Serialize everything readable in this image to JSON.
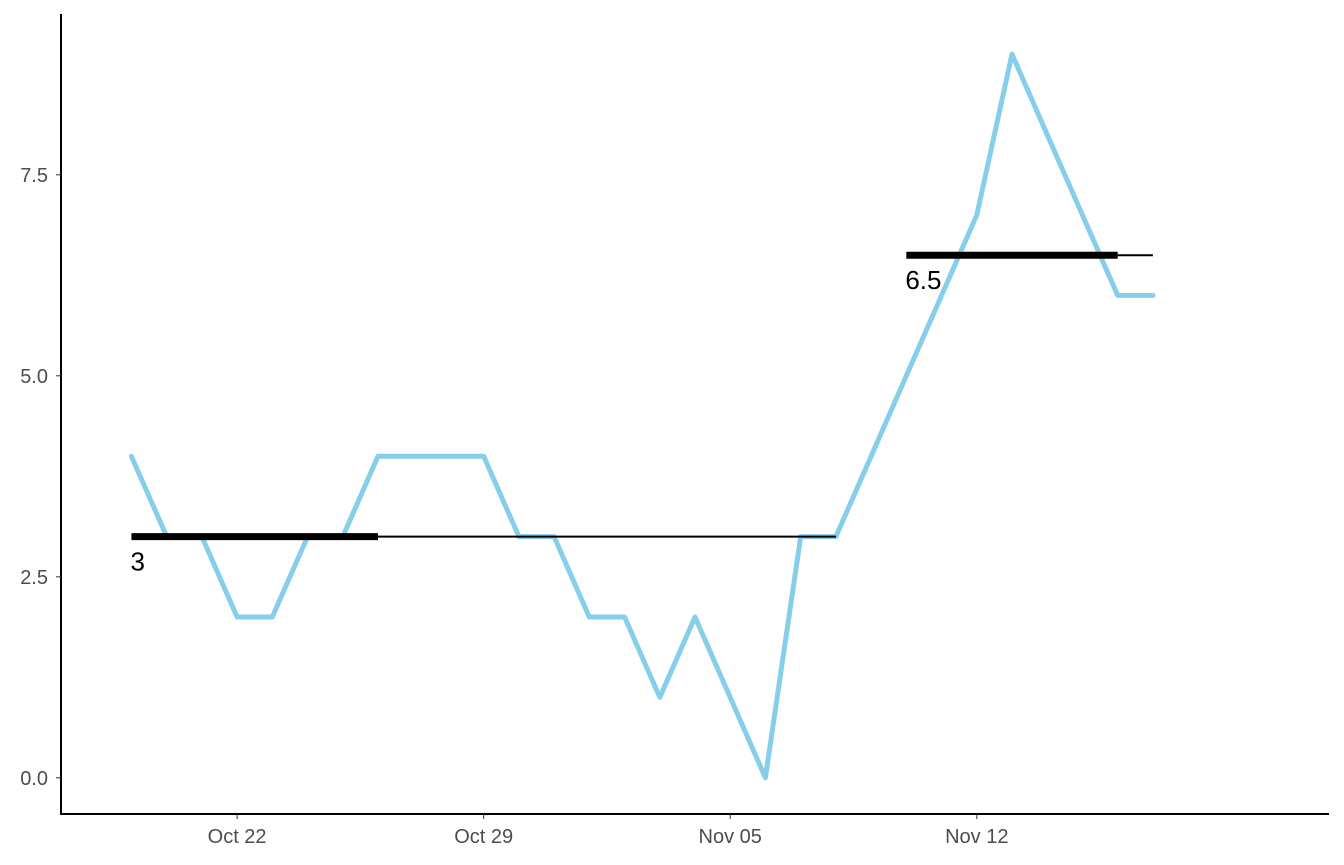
{
  "chart_data": {
    "type": "line",
    "title": "",
    "xlabel": "",
    "ylabel": "",
    "x_ticks": [
      "Oct 22",
      "Oct 29",
      "Nov 05",
      "Nov 12"
    ],
    "x_tick_dates": [
      "2023-10-22",
      "2023-10-29",
      "2023-11-05",
      "2023-11-12"
    ],
    "y_ticks": [
      "0.0",
      "2.5",
      "5.0",
      "7.5"
    ],
    "y_tick_values": [
      0,
      2.5,
      5,
      7.5
    ],
    "xlim": [
      "2023-10-17",
      "2023-11-22"
    ],
    "ylim": [
      -0.45,
      9.5
    ],
    "grid": false,
    "series": [
      {
        "color": "#87CEEB",
        "points": [
          {
            "x": "2023-10-19",
            "y": 4
          },
          {
            "x": "2023-10-20",
            "y": 3
          },
          {
            "x": "2023-10-21",
            "y": 3
          },
          {
            "x": "2023-10-22",
            "y": 2
          },
          {
            "x": "2023-10-23",
            "y": 2
          },
          {
            "x": "2023-10-24",
            "y": 3
          },
          {
            "x": "2023-10-25",
            "y": 3
          },
          {
            "x": "2023-10-26",
            "y": 4
          },
          {
            "x": "2023-10-27",
            "y": 4
          },
          {
            "x": "2023-10-28",
            "y": 4
          },
          {
            "x": "2023-10-29",
            "y": 4
          },
          {
            "x": "2023-10-30",
            "y": 3
          },
          {
            "x": "2023-10-31",
            "y": 3
          },
          {
            "x": "2023-11-01",
            "y": 2
          },
          {
            "x": "2023-11-02",
            "y": 2
          },
          {
            "x": "2023-11-03",
            "y": 1
          },
          {
            "x": "2023-11-04",
            "y": 2
          },
          {
            "x": "2023-11-05",
            "y": 1
          },
          {
            "x": "2023-11-06",
            "y": 0
          },
          {
            "x": "2023-11-07",
            "y": 3
          },
          {
            "x": "2023-11-08",
            "y": 3
          },
          {
            "x": "2023-11-09",
            "y": 4
          },
          {
            "x": "2023-11-10",
            "y": 5
          },
          {
            "x": "2023-11-11",
            "y": 6
          },
          {
            "x": "2023-11-12",
            "y": 7
          },
          {
            "x": "2023-11-13",
            "y": 9
          },
          {
            "x": "2023-11-14",
            "y": 8
          },
          {
            "x": "2023-11-15",
            "y": 7
          },
          {
            "x": "2023-11-16",
            "y": 6
          },
          {
            "x": "2023-11-17",
            "y": 6
          }
        ]
      }
    ],
    "segments": [
      {
        "label": "3",
        "value": 3,
        "thick_from": "2023-10-19",
        "thick_to": "2023-10-26",
        "thin_to": "2023-11-08",
        "color": "#000000"
      },
      {
        "label": "6.5",
        "value": 6.5,
        "thick_from": "2023-11-10",
        "thick_to": "2023-11-16",
        "thin_to": "2023-11-17",
        "color": "#000000"
      }
    ]
  }
}
